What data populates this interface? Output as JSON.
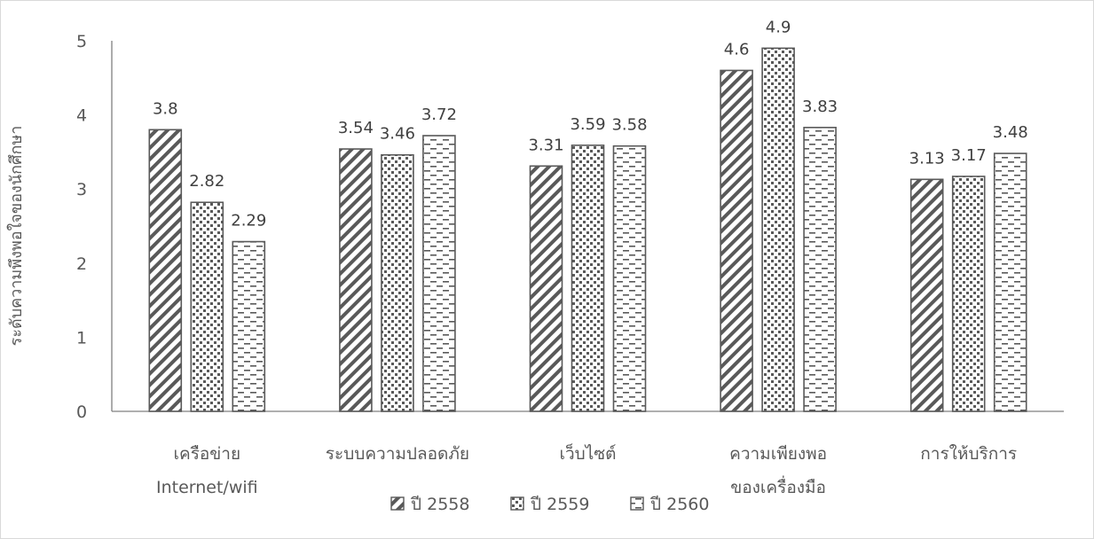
{
  "chart_data": {
    "type": "bar",
    "title": "",
    "xlabel": "",
    "ylabel": "ระดับความพึงพอใจของนักศึกษา",
    "ylim": [
      0,
      5
    ],
    "yticks": [
      0,
      1,
      2,
      3,
      4,
      5
    ],
    "grid": false,
    "legend_position": "bottom",
    "categories": [
      [
        "เครือข่าย",
        "Internet/wifi"
      ],
      [
        "ระบบความปลอดภัย"
      ],
      [
        "เว็บไซต์"
      ],
      [
        "ความเพียงพอ",
        "ของเครื่องมือ"
      ],
      [
        "การให้บริการ"
      ]
    ],
    "series": [
      {
        "name": "ปี 2558",
        "values": [
          3.8,
          3.54,
          3.31,
          4.6,
          3.13
        ],
        "value_labels": [
          "3.8",
          "3.54",
          "3.31",
          "4.6",
          "3.13"
        ],
        "pattern": "diagonal-stripes"
      },
      {
        "name": "ปี 2559",
        "values": [
          2.82,
          3.46,
          3.59,
          4.9,
          3.17
        ],
        "value_labels": [
          "2.82",
          "3.46",
          "3.59",
          "4.9",
          "3.17"
        ],
        "pattern": "dots"
      },
      {
        "name": "ปี 2560",
        "values": [
          2.29,
          3.72,
          3.58,
          3.83,
          3.48
        ],
        "value_labels": [
          "2.29",
          "3.72",
          "3.58",
          "3.83",
          "3.48"
        ],
        "pattern": "dashed-horizontal"
      }
    ],
    "colors": {
      "bar_stroke": "#595959",
      "axis": "#7f7f7f",
      "text": "#595959",
      "background": "#ffffff"
    }
  }
}
